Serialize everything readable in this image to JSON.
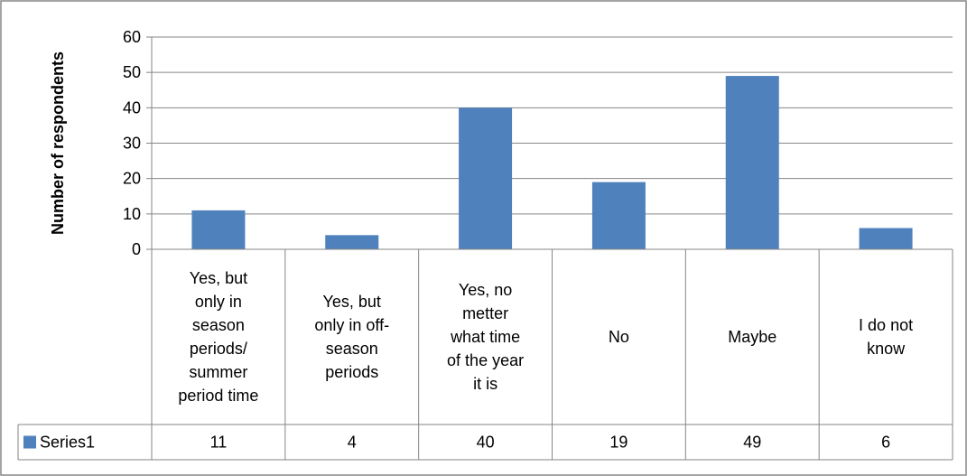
{
  "chart_data": {
    "type": "bar",
    "ylabel": "Number of respondents",
    "ylim": [
      0,
      60
    ],
    "yticks": [
      0,
      10,
      20,
      30,
      40,
      50,
      60
    ],
    "grid": true,
    "categories": [
      [
        "Yes, but",
        "only in",
        "season",
        "periods/",
        "summer",
        "period time"
      ],
      [
        "Yes, but",
        "only in off-",
        "season",
        "periods"
      ],
      [
        "Yes, no",
        "metter",
        "what time",
        "of the year",
        "it is"
      ],
      [
        "No"
      ],
      [
        "Maybe"
      ],
      [
        "I do not",
        "know"
      ]
    ],
    "series": [
      {
        "name": "Series1",
        "values": [
          11,
          4,
          40,
          19,
          49,
          6
        ],
        "color": "#4f81bd"
      }
    ],
    "legend": "data-table"
  }
}
